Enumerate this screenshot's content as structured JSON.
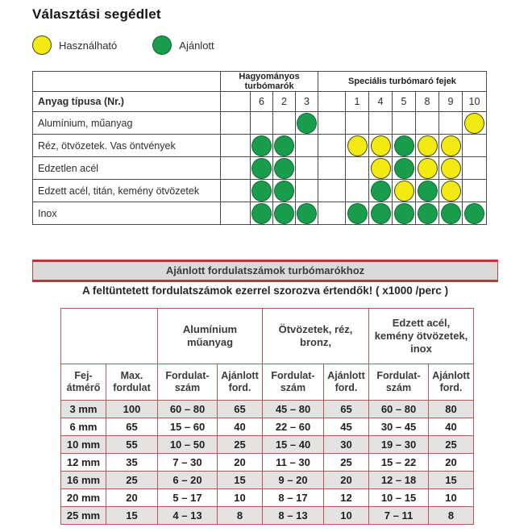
{
  "title": "Választási segédlet",
  "legend": [
    {
      "label": "Használható",
      "color": "#f3ea11",
      "meaning": "usable"
    },
    {
      "label": "Ajánlott",
      "color": "#199c4c",
      "meaning": "recommended"
    }
  ],
  "selection_table": {
    "material_header": "Anyag típusa (Nr.)",
    "groups": [
      {
        "label": "Hagyományos turbómarók",
        "columns": [
          "6",
          "2",
          "3"
        ]
      },
      {
        "label": "Speciális turbómaró fejek",
        "columns": [
          "1",
          "4",
          "5",
          "8",
          "9",
          "10"
        ]
      }
    ],
    "legend_codes": {
      "R": "recommended",
      "U": "usable"
    },
    "rows": [
      {
        "material": "Alumínium, műanyag",
        "marks": [
          "",
          "",
          "R",
          "",
          "",
          "",
          "",
          "",
          "U"
        ]
      },
      {
        "material": "Réz, ötvözetek. Vas öntvények",
        "marks": [
          "R",
          "R",
          "",
          "U",
          "U",
          "R",
          "U",
          "U",
          ""
        ]
      },
      {
        "material": "Edzetlen acél",
        "marks": [
          "R",
          "R",
          "",
          "",
          "U",
          "R",
          "U",
          "U",
          ""
        ]
      },
      {
        "material": "Edzett acél, titán, kemény ötvözetek",
        "marks": [
          "R",
          "R",
          "",
          "",
          "R",
          "U",
          "R",
          "U",
          ""
        ]
      },
      {
        "material": "Inox",
        "marks": [
          "R",
          "R",
          "R",
          "R",
          "R",
          "R",
          "R",
          "R",
          "R"
        ]
      }
    ]
  },
  "speed_section": {
    "banner": "Ajánlott fordulatszámok turbómarókhoz",
    "note": "A feltüntetett fordulatszámok ezerrel szorozva értendők! ( x1000 /perc )",
    "table": {
      "group_headers": [
        "Alumínium\nműanyag",
        "Ötvözetek, réz,\nbronz,",
        "Edzett acél,\nkemény ötvözetek,\ninox"
      ],
      "column_headers": [
        "Fej-\nátmérő",
        "Max.\nfordulat",
        "Fordulat-\nszám",
        "Ajánlott\nford.",
        "Fordulat-\nszám",
        "Ajánlott\nford.",
        "Fordulat-\nszám",
        "Ajánlott\nford."
      ],
      "rows": [
        [
          "3 mm",
          "100",
          "60 – 80",
          "65",
          "45 – 80",
          "65",
          "60 – 80",
          "80"
        ],
        [
          "6 mm",
          "65",
          "15 – 60",
          "40",
          "22 – 60",
          "45",
          "30 – 45",
          "40"
        ],
        [
          "10 mm",
          "55",
          "10 – 50",
          "25",
          "15 – 40",
          "30",
          "19 – 30",
          "25"
        ],
        [
          "12 mm",
          "35",
          "7 – 30",
          "20",
          "11 – 30",
          "25",
          "15 – 22",
          "20"
        ],
        [
          "16 mm",
          "25",
          "6 – 20",
          "15",
          "9 – 20",
          "20",
          "12 – 18",
          "15"
        ],
        [
          "20 mm",
          "20",
          "5 – 17",
          "10",
          "8 – 17",
          "12",
          "10 – 15",
          "10"
        ],
        [
          "25 mm",
          "15",
          "4 – 13",
          "8",
          "8 – 13",
          "10",
          "7 – 11",
          "8"
        ]
      ]
    }
  },
  "colors": {
    "usable_yellow": "#f3ea11",
    "recommended_green": "#199c4c",
    "banner_red": "#bf3434",
    "speed_table_border": "#b25858",
    "alt_row_bg": "#e5e2e2"
  }
}
